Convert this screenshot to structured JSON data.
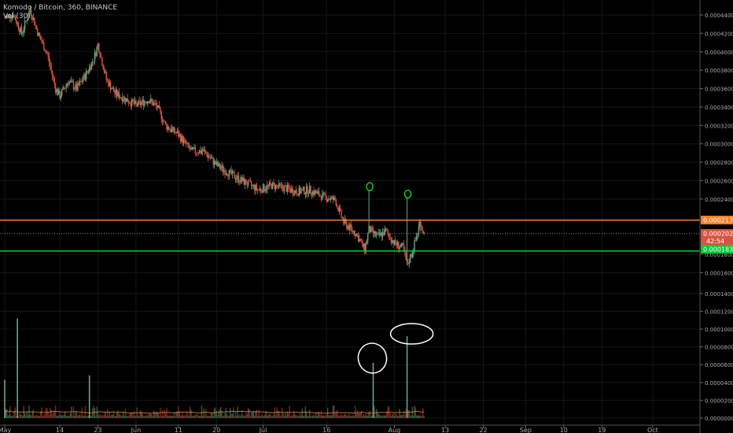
{
  "header": {
    "title": "Komodo / Bitcoin, 360, BINANCE",
    "volume_label": "Vol (30)"
  },
  "colors": {
    "up": "#6ba583",
    "down": "#d75442",
    "orange_line": "#ff7f27",
    "green_line": "#00cc33",
    "volume_ma": "#ff7f27",
    "green_marker": "#22dd22",
    "white_marker": "#ffffff"
  },
  "chart_data": {
    "type": "candlestick",
    "symbol": "Komodo / Bitcoin",
    "interval": "360",
    "exchange": "BINANCE",
    "price_axis": {
      "ticks": [
        "0.0004400",
        "0.0004200",
        "0.0004000",
        "0.0003800",
        "0.0003600",
        "0.0003400",
        "0.0003200",
        "0.0003000",
        "0.0002800",
        "0.0002600",
        "0.0002400",
        "0.0001800",
        "0.0001600",
        "0.0001400",
        "0.0001200",
        "0.0001000",
        "0.0000800",
        "0.0000600",
        "0.0000400",
        "0.0000200",
        "0.0000000"
      ]
    },
    "time_axis": {
      "ticks": [
        "May",
        "14",
        "23",
        "Jun",
        "11",
        "20",
        "Jul",
        "16",
        "Aug",
        "13",
        "22",
        "Sep",
        "10",
        "19",
        "Oct"
      ]
    },
    "price_labels": {
      "resistance": "0.0002171",
      "current": "0.0002025",
      "countdown": "42:54",
      "support": "0.0001835"
    },
    "path_points": [
      [
        "May 1",
        0.000437
      ],
      [
        "May 3",
        0.000441
      ],
      [
        "May 5",
        0.00042
      ],
      [
        "May 7",
        0.000446
      ],
      [
        "May 9",
        0.000418
      ],
      [
        "May 11",
        0.000398
      ],
      [
        "May 13",
        0.00036
      ],
      [
        "May 14",
        0.000352
      ],
      [
        "May 16",
        0.000368
      ],
      [
        "May 18",
        0.00036
      ],
      [
        "May 20",
        0.000374
      ],
      [
        "May 22",
        0.000392
      ],
      [
        "May 23",
        0.000408
      ],
      [
        "May 25",
        0.00037
      ],
      [
        "May 27",
        0.000355
      ],
      [
        "May 29",
        0.00035
      ],
      [
        "Jun 1",
        0.000342
      ],
      [
        "Jun 4",
        0.000348
      ],
      [
        "Jun 6",
        0.00034
      ],
      [
        "Jun 8",
        0.00032
      ],
      [
        "Jun 11",
        0.00031
      ],
      [
        "Jun 14",
        0.000292
      ],
      [
        "Jun 17",
        0.000292
      ],
      [
        "Jun 20",
        0.000277
      ],
      [
        "Jun 23",
        0.000268
      ],
      [
        "Jun 26",
        0.00026
      ],
      [
        "Jun 30",
        0.00025
      ],
      [
        "Jul 3",
        0.000255
      ],
      [
        "Jul 6",
        0.000252
      ],
      [
        "Jul 9",
        0.000248
      ],
      [
        "Jul 12",
        0.00025
      ],
      [
        "Jul 15",
        0.000243
      ],
      [
        "Jul 18",
        0.000239
      ],
      [
        "Jul 20",
        0.000215
      ],
      [
        "Jul 23",
        0.000202
      ],
      [
        "Jul 25",
        0.000185
      ],
      [
        "Jul 26",
        0.000207
      ],
      [
        "Jul 28",
        0.000199
      ],
      [
        "Jul 30",
        0.000205
      ],
      [
        "Aug 1",
        0.000192
      ],
      [
        "Aug 3",
        0.000187
      ],
      [
        "Aug 4",
        0.000168
      ],
      [
        "Aug 5",
        0.00018
      ],
      [
        "Aug 6",
        0.000195
      ],
      [
        "Aug 7",
        0.000214
      ],
      [
        "Aug 8",
        0.000203
      ]
    ],
    "volume_spikes": [
      {
        "date": "May 1",
        "value": 4.3e-05
      },
      {
        "date": "May 4",
        "value": 0.000112
      },
      {
        "date": "May 21",
        "value": 4.8e-05
      },
      {
        "date": "Jul 27",
        "value": 6.2e-05
      },
      {
        "date": "Aug 4",
        "value": 9.2e-05
      }
    ],
    "wick_spikes": [
      {
        "date": "Jul 26",
        "high": 0.00025
      },
      {
        "date": "Aug 4",
        "high": 0.000242
      }
    ]
  }
}
